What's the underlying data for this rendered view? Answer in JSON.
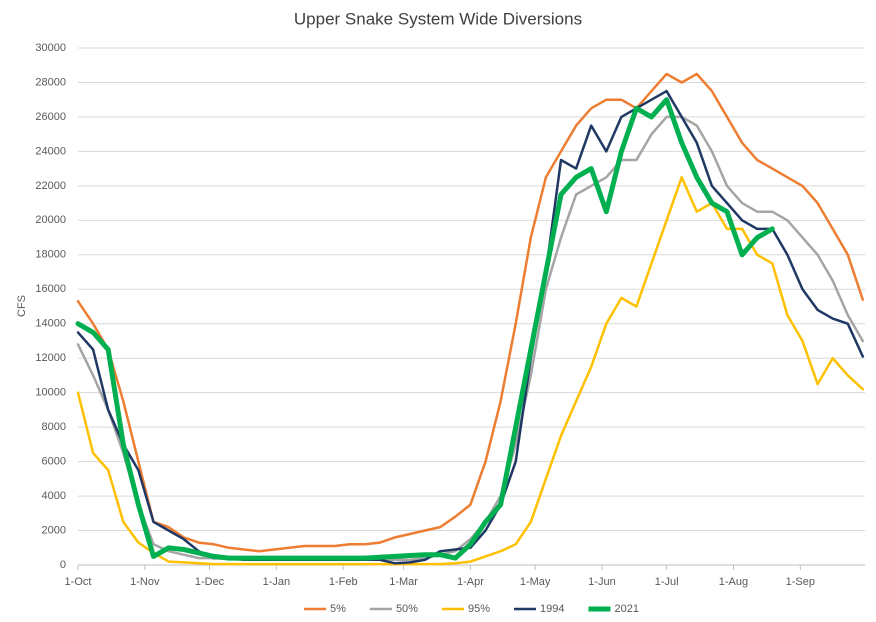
{
  "chart_data": {
    "type": "line",
    "title": "Upper Snake System Wide Diversions",
    "y_label": "CFS",
    "x": [
      0,
      7,
      14,
      21,
      28,
      35,
      42,
      49,
      56,
      63,
      70,
      77,
      84,
      91,
      98,
      105,
      112,
      119,
      126,
      133,
      140,
      147,
      154,
      161,
      168,
      175,
      182,
      189,
      196,
      203,
      210,
      217,
      224,
      231,
      238,
      245,
      252,
      259,
      266,
      273,
      280,
      287,
      294,
      301,
      308,
      315,
      322,
      329,
      336,
      343,
      350,
      357,
      364
    ],
    "xlim": [
      0,
      365
    ],
    "xticks": [
      {
        "value": 0,
        "label": "1-Oct"
      },
      {
        "value": 31,
        "label": "1-Nov"
      },
      {
        "value": 61,
        "label": "1-Dec"
      },
      {
        "value": 92,
        "label": "1-Jan"
      },
      {
        "value": 123,
        "label": "1-Feb"
      },
      {
        "value": 151,
        "label": "1-Mar"
      },
      {
        "value": 182,
        "label": "1-Apr"
      },
      {
        "value": 212,
        "label": "1-May"
      },
      {
        "value": 243,
        "label": "1-Jun"
      },
      {
        "value": 273,
        "label": "1-Jul"
      },
      {
        "value": 304,
        "label": "1-Aug"
      },
      {
        "value": 335,
        "label": "1-Sep"
      }
    ],
    "ylim": [
      0,
      30000
    ],
    "yticks": [
      0,
      2000,
      4000,
      6000,
      8000,
      10000,
      12000,
      14000,
      16000,
      18000,
      20000,
      22000,
      24000,
      26000,
      28000,
      30000
    ],
    "grid": true,
    "legend": "bottom",
    "series": [
      {
        "name": "5%",
        "color": "#ed7d31",
        "width": 2.5,
        "values": [
          15300,
          14000,
          12500,
          9500,
          6000,
          2500,
          2200,
          1600,
          1300,
          1200,
          1000,
          900,
          800,
          900,
          1000,
          1100,
          1100,
          1100,
          1200,
          1200,
          1300,
          1600,
          1800,
          2000,
          2200,
          2800,
          3500,
          6000,
          9500,
          14000,
          19000,
          22500,
          24000,
          25500,
          26500,
          27000,
          27000,
          26500,
          27500,
          28500,
          28000,
          28500,
          27500,
          26000,
          24500,
          23500,
          23000,
          22500,
          22000,
          21000,
          19500,
          18000,
          15400
        ]
      },
      {
        "name": "50%",
        "color": "#a5a5a5",
        "width": 2.5,
        "values": [
          12800,
          11000,
          9000,
          6500,
          3500,
          1200,
          800,
          600,
          400,
          400,
          350,
          300,
          300,
          300,
          300,
          300,
          300,
          300,
          300,
          300,
          300,
          300,
          300,
          400,
          600,
          800,
          1500,
          2500,
          4000,
          7000,
          11000,
          16000,
          19000,
          21500,
          22000,
          22500,
          23500,
          23500,
          25000,
          26000,
          26000,
          25500,
          24000,
          22000,
          21000,
          20500,
          20500,
          20000,
          19000,
          18000,
          16500,
          14500,
          13000
        ]
      },
      {
        "name": "95%",
        "color": "#ffc000",
        "width": 2.5,
        "values": [
          10000,
          6500,
          5500,
          2500,
          1300,
          700,
          200,
          150,
          100,
          50,
          50,
          50,
          50,
          50,
          50,
          50,
          50,
          50,
          50,
          50,
          50,
          50,
          50,
          50,
          50,
          100,
          200,
          500,
          800,
          1200,
          2500,
          5000,
          7500,
          9500,
          11500,
          14000,
          15500,
          15000,
          17500,
          20000,
          22500,
          20500,
          21000,
          19500,
          19500,
          18000,
          17500,
          14500,
          13000,
          10500,
          12000,
          11000,
          10200
        ]
      },
      {
        "name": "1994",
        "color": "#203864",
        "width": 2.5,
        "values": [
          13500,
          12500,
          9000,
          7000,
          5500,
          2500,
          2000,
          1500,
          800,
          400,
          400,
          300,
          300,
          300,
          300,
          300,
          300,
          300,
          300,
          300,
          300,
          100,
          150,
          300,
          800,
          900,
          1000,
          2000,
          3500,
          6000,
          12000,
          17000,
          23500,
          23000,
          25500,
          24000,
          26000,
          26500,
          27000,
          27500,
          26000,
          24500,
          22000,
          21000,
          20000,
          19500,
          19500,
          18000,
          16000,
          14800,
          14300,
          14000,
          12100
        ]
      },
      {
        "name": "2021",
        "color": "#00b050",
        "width": 5,
        "values": [
          14000,
          13500,
          12500,
          7000,
          3500,
          500,
          1000,
          900,
          700,
          500,
          400,
          400,
          400,
          400,
          400,
          400,
          400,
          400,
          400,
          400,
          450,
          500,
          550,
          600,
          600,
          400,
          1200,
          2500,
          3500,
          8000,
          12500,
          17000,
          21500,
          22500,
          23000,
          20500,
          24000,
          26500,
          26000,
          27000,
          24500,
          22500,
          21000,
          20500,
          18000,
          19000,
          19500,
          null,
          null,
          null,
          null,
          null,
          null
        ]
      }
    ]
  }
}
